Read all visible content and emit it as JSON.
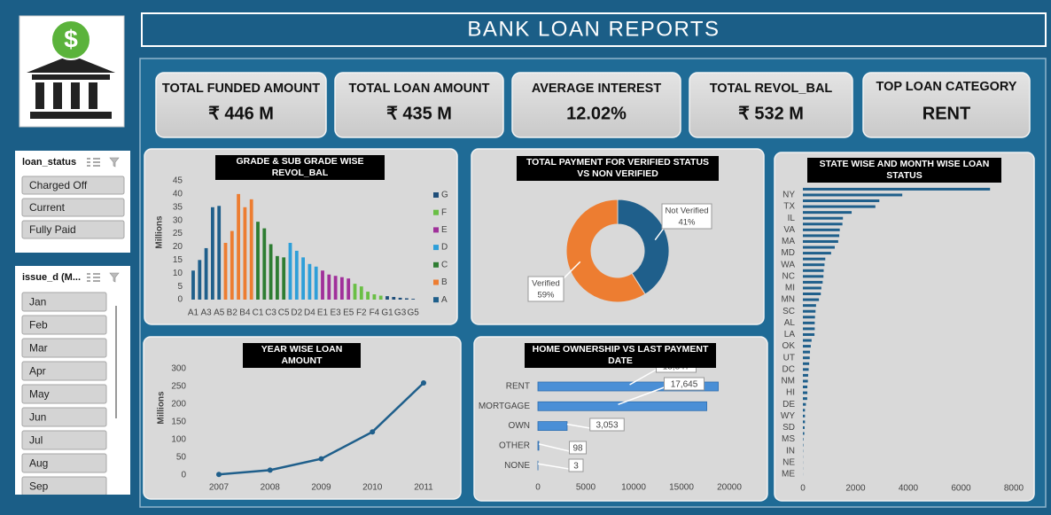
{
  "header": {
    "title": "BANK LOAN REPORTS"
  },
  "kpis": [
    {
      "label": "TOTAL FUNDED AMOUNT",
      "value": "₹ 446 M"
    },
    {
      "label": "TOTAL LOAN AMOUNT",
      "value": "₹ 435 M"
    },
    {
      "label": "AVERAGE INTEREST",
      "value": "12.02%"
    },
    {
      "label": "TOTAL REVOL_BAL",
      "value": "₹ 532 M"
    },
    {
      "label": "TOP LOAN CATEGORY",
      "value": "RENT"
    }
  ],
  "slicers": [
    {
      "title": "loan_status",
      "items": [
        "Charged Off",
        "Current",
        "Fully Paid"
      ]
    },
    {
      "title": "issue_d (M...",
      "items": [
        "Jan",
        "Feb",
        "Mar",
        "Apr",
        "May",
        "Jun",
        "Jul",
        "Aug",
        "Sep"
      ]
    }
  ],
  "chart_data": [
    {
      "type": "bar",
      "title": "GRADE & SUB GRADE WISE REVOL_BAL",
      "y_label": "Millions",
      "categories": [
        "A1",
        null,
        "A3",
        null,
        "A5",
        null,
        "B2",
        null,
        "B4",
        null,
        "C1",
        null,
        "C3",
        null,
        "C5",
        null,
        "D2",
        null,
        "D4",
        null,
        "E1",
        null,
        "E3",
        null,
        "E5",
        null,
        "F2",
        null,
        "F4",
        null,
        "G1",
        null,
        "G3",
        null,
        "G5"
      ],
      "series": [
        {
          "name": "A",
          "color": "#1f5f8b",
          "values": [
            11,
            15,
            19.5,
            35,
            35.5,
            null,
            null,
            null,
            null,
            null,
            null,
            null,
            null,
            null,
            null,
            null,
            null,
            null,
            null,
            null,
            null,
            null,
            null,
            null,
            null,
            null,
            null,
            null,
            null,
            null,
            null,
            null,
            null,
            null,
            null
          ]
        },
        {
          "name": "B",
          "color": "#ed7d31",
          "values": [
            null,
            null,
            null,
            null,
            null,
            21.5,
            26,
            40,
            35,
            38,
            null,
            null,
            null,
            null,
            null,
            null,
            null,
            null,
            null,
            null,
            null,
            null,
            null,
            null,
            null,
            null,
            null,
            null,
            null,
            null,
            null,
            null,
            null,
            null,
            null
          ]
        },
        {
          "name": "C",
          "color": "#2e7d32",
          "values": [
            null,
            null,
            null,
            null,
            null,
            null,
            null,
            null,
            null,
            null,
            29.5,
            27,
            21,
            16.5,
            16,
            null,
            null,
            null,
            null,
            null,
            null,
            null,
            null,
            null,
            null,
            null,
            null,
            null,
            null,
            null,
            null,
            null,
            null,
            null,
            null
          ]
        },
        {
          "name": "D",
          "color": "#2e9fd9",
          "values": [
            null,
            null,
            null,
            null,
            null,
            null,
            null,
            null,
            null,
            null,
            null,
            null,
            null,
            null,
            null,
            21.5,
            18.5,
            16,
            13.5,
            12.5,
            null,
            null,
            null,
            null,
            null,
            null,
            null,
            null,
            null,
            null,
            null,
            null,
            null,
            null,
            null
          ]
        },
        {
          "name": "E",
          "color": "#a0309a",
          "values": [
            null,
            null,
            null,
            null,
            null,
            null,
            null,
            null,
            null,
            null,
            null,
            null,
            null,
            null,
            null,
            null,
            null,
            null,
            null,
            null,
            11,
            9.5,
            9,
            8.5,
            8,
            null,
            null,
            null,
            null,
            null,
            null,
            null,
            null,
            null,
            null
          ]
        },
        {
          "name": "F",
          "color": "#6abf45",
          "values": [
            null,
            null,
            null,
            null,
            null,
            null,
            null,
            null,
            null,
            null,
            null,
            null,
            null,
            null,
            null,
            null,
            null,
            null,
            null,
            null,
            null,
            null,
            null,
            null,
            null,
            6,
            5,
            3,
            2,
            1.5,
            null,
            null,
            null,
            null,
            null
          ]
        },
        {
          "name": "G",
          "color": "#1f4e79",
          "values": [
            null,
            null,
            null,
            null,
            null,
            null,
            null,
            null,
            null,
            null,
            null,
            null,
            null,
            null,
            null,
            null,
            null,
            null,
            null,
            null,
            null,
            null,
            null,
            null,
            null,
            null,
            null,
            null,
            null,
            null,
            1.3,
            1,
            0.7,
            0.5,
            0.3
          ]
        }
      ],
      "ylim": [
        0,
        45
      ],
      "yticks": [
        0,
        5,
        10,
        15,
        20,
        25,
        30,
        35,
        40,
        45
      ],
      "legend": "right"
    },
    {
      "type": "donut",
      "title": "TOTAL PAYMENT FOR VERIFIED STATUS VS NON VERIFIED",
      "categories": [
        "Not Verified",
        "Verified"
      ],
      "values": [
        41,
        59
      ],
      "value_labels": [
        "41%",
        "59%"
      ],
      "colors": [
        "#1f5f8b",
        "#ed7d31"
      ]
    },
    {
      "type": "line",
      "title": "YEAR WISE LOAN AMOUNT",
      "y_label": "Millions",
      "categories": [
        "2007",
        "2008",
        "2009",
        "2010",
        "2011"
      ],
      "values": [
        2,
        14,
        46,
        122,
        260
      ],
      "color": "#1f5f8b",
      "ylim": [
        0,
        300
      ],
      "yticks": [
        0,
        50,
        100,
        150,
        200,
        250,
        300
      ]
    },
    {
      "type": "hbar",
      "title": "HOME OWNERSHIP VS LAST PAYMENT DATE",
      "categories": [
        "RENT",
        "MORTGAGE",
        "OWN",
        "OTHER",
        "NONE"
      ],
      "values": [
        18847,
        17645,
        3053,
        98,
        3
      ],
      "value_labels": [
        "18,847",
        "17,645",
        "3,053",
        "98",
        "3"
      ],
      "color": "#4a8fd6",
      "xlim": [
        0,
        20000
      ],
      "xticks": [
        0,
        5000,
        10000,
        15000,
        20000
      ]
    },
    {
      "type": "hbar",
      "title": "STATE WISE AND MONTH WISE LOAN STATUS",
      "categories": [
        null,
        "NY",
        null,
        "TX",
        null,
        "IL",
        null,
        "VA",
        null,
        "MA",
        null,
        "MD",
        null,
        "WA",
        null,
        "NC",
        null,
        "MI",
        null,
        "MN",
        null,
        "SC",
        null,
        "AL",
        null,
        "LA",
        null,
        "OK",
        null,
        "UT",
        null,
        "DC",
        null,
        "NM",
        null,
        "HI",
        null,
        "DE",
        null,
        "WY",
        null,
        "SD",
        null,
        "MS",
        null,
        "IN",
        null,
        "NE",
        null,
        "ME"
      ],
      "values": [
        7100,
        3770,
        2900,
        2750,
        1850,
        1520,
        1500,
        1400,
        1380,
        1340,
        1210,
        1070,
        850,
        820,
        790,
        780,
        750,
        700,
        680,
        610,
        500,
        480,
        460,
        450,
        450,
        440,
        330,
        300,
        270,
        260,
        240,
        220,
        200,
        190,
        170,
        170,
        165,
        115,
        80,
        80,
        80,
        65,
        55,
        20,
        17,
        9,
        6,
        5,
        5,
        3
      ],
      "color": "#1f5f8b",
      "xlim": [
        0,
        8000
      ],
      "xticks": [
        0,
        2000,
        4000,
        6000,
        8000
      ]
    }
  ]
}
